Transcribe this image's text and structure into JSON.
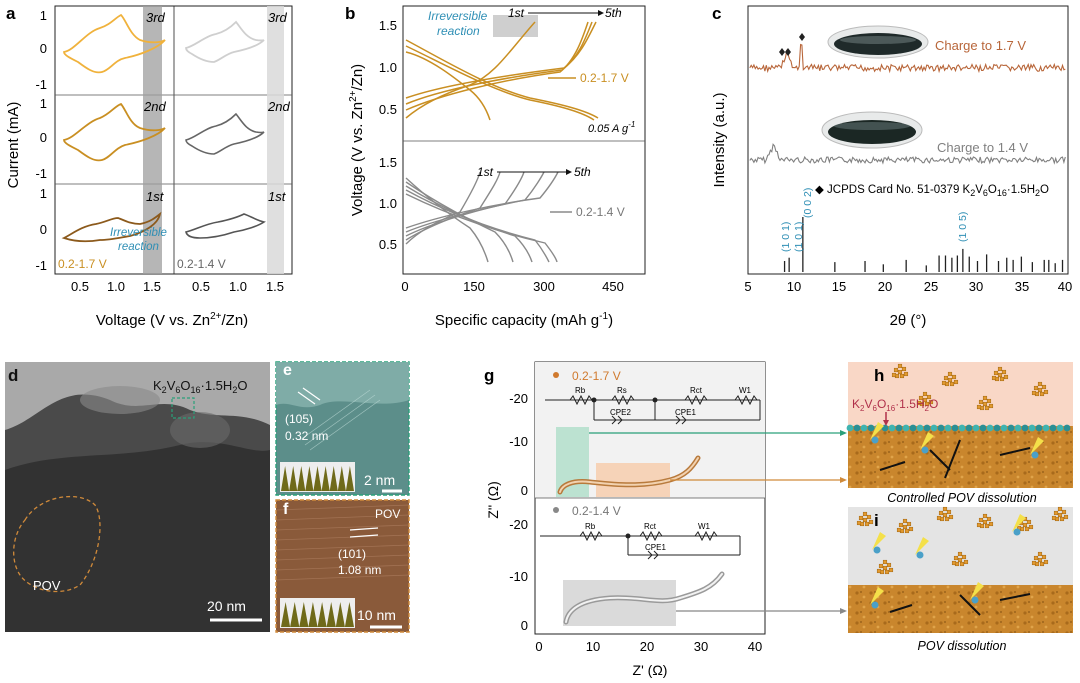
{
  "panel_labels": {
    "a": "a",
    "b": "b",
    "c": "c",
    "d": "d",
    "e": "e",
    "f": "f",
    "g": "g",
    "h": "h",
    "i": "i"
  },
  "panel_a": {
    "ylabel": "Current (mA)",
    "xlabel": "Voltage (V vs. Zn",
    "xlabel_sup": "2+",
    "xlabel_end": "/Zn)",
    "xticks": [
      "0.5",
      "1.0",
      "1.5",
      "0.5",
      "1.0",
      "1.5"
    ],
    "yticks": [
      "1",
      "0",
      "-1"
    ],
    "cycle_labels": [
      "3rd",
      "2nd",
      "1st"
    ],
    "left_range": "0.2-1.7 V",
    "right_range": "0.2-1.4 V",
    "annotation_line1": "Irreversible",
    "annotation_line2": "reaction",
    "colors": {
      "3rd": "#f0b23c",
      "2nd": "#c98f22",
      "1st": "#8c5a1c",
      "right": "#555555",
      "band": "#9e9e9e"
    }
  },
  "panel_b": {
    "ylabel_main": "Voltage (V vs. Zn",
    "ylabel_sup": "2+",
    "ylabel_end": "/Zn)",
    "xlabel": "Specific capacity (mAh g",
    "xlabel_sup": "-1",
    "xlabel_end": ")",
    "xticks": [
      "0",
      "150",
      "300",
      "450"
    ],
    "yticks_top": [
      "1.5",
      "1.0",
      "0.5"
    ],
    "yticks_bottom": [
      "1.5",
      "1.0",
      "0.5"
    ],
    "annotation_line1": "Irreversible",
    "annotation_line2": "reaction",
    "first": "1st",
    "fifth": "5th",
    "top_range": "0.2-1.7 V",
    "bottom_range": "0.2-1.4 V",
    "current": "0.05 A g",
    "current_sup": "-1",
    "colors": {
      "top": "#c98f22",
      "bottom": "#888888"
    }
  },
  "panel_c": {
    "ylabel": "Intensity (a.u.)",
    "xlabel": "2θ (°)",
    "xticks": [
      "5",
      "10",
      "15",
      "20",
      "25",
      "30",
      "35",
      "40"
    ],
    "label_top": "Charge to 1.7 V",
    "label_mid": "Charge to 1.4 V",
    "jcpds": "◆ JCPDS Card No. 51-0379 K",
    "jcpds_formula": "2V6O16·1.5H2O",
    "hkl": [
      "(1 0 1)",
      "(1 0 1)",
      "(0 0 2)",
      "(1 0 5)"
    ],
    "colors": {
      "top": "#b8663a",
      "mid": "#808080"
    },
    "ref_lines": [
      {
        "x": 9.0,
        "h": 0.2
      },
      {
        "x": 9.5,
        "h": 0.26
      },
      {
        "x": 11.0,
        "h": 1.0
      },
      {
        "x": 14.5,
        "h": 0.18
      },
      {
        "x": 17.8,
        "h": 0.2
      },
      {
        "x": 19.8,
        "h": 0.14
      },
      {
        "x": 22.3,
        "h": 0.22
      },
      {
        "x": 24.5,
        "h": 0.12
      },
      {
        "x": 25.9,
        "h": 0.3
      },
      {
        "x": 26.6,
        "h": 0.3
      },
      {
        "x": 27.3,
        "h": 0.26
      },
      {
        "x": 27.9,
        "h": 0.3
      },
      {
        "x": 28.5,
        "h": 0.42
      },
      {
        "x": 29.2,
        "h": 0.28
      },
      {
        "x": 30.1,
        "h": 0.2
      },
      {
        "x": 31.1,
        "h": 0.32
      },
      {
        "x": 32.4,
        "h": 0.2
      },
      {
        "x": 33.3,
        "h": 0.26
      },
      {
        "x": 34.0,
        "h": 0.22
      },
      {
        "x": 34.9,
        "h": 0.28
      },
      {
        "x": 36.1,
        "h": 0.18
      },
      {
        "x": 37.4,
        "h": 0.22
      },
      {
        "x": 37.9,
        "h": 0.22
      },
      {
        "x": 38.6,
        "h": 0.16
      },
      {
        "x": 39.4,
        "h": 0.22
      }
    ]
  },
  "panel_d": {
    "formula": "K2V6O16·1.5H2O",
    "region": "POV",
    "scale": "20 nm"
  },
  "panel_e": {
    "hkl": "(105)",
    "spacing": "0.32 nm",
    "scale": "2 nm"
  },
  "panel_f": {
    "region": "POV",
    "hkl": "(101)",
    "spacing": "1.08 nm",
    "scale": "10 nm"
  },
  "panel_g": {
    "ylabel": "Z'' (Ω)",
    "xlabel": "Z' (Ω)",
    "xticks": [
      "0",
      "10",
      "20",
      "30",
      "40"
    ],
    "yticks_top": [
      "-20",
      "-10",
      "0"
    ],
    "yticks_bottom": [
      "-20",
      "-10",
      "0"
    ],
    "top_legend": "0.2-1.7 V",
    "bottom_legend": "0.2-1.4 V",
    "circuit_top": [
      "Rb",
      "Rs",
      "Rct",
      "W1",
      "CPE2",
      "CPE1"
    ],
    "circuit_bottom": [
      "Rb",
      "Rct",
      "W1",
      "CPE1"
    ],
    "colors": {
      "top_dot": "#d07a2e",
      "bottom_dot": "#888888",
      "curve_top": "#b87a3c",
      "curve_bottom": "#9a9a9a"
    }
  },
  "panel_h": {
    "formula": "K2V6O16·1.5H2O",
    "caption": "Controlled POV dissolution"
  },
  "panel_i": {
    "caption": "POV dissolution"
  }
}
